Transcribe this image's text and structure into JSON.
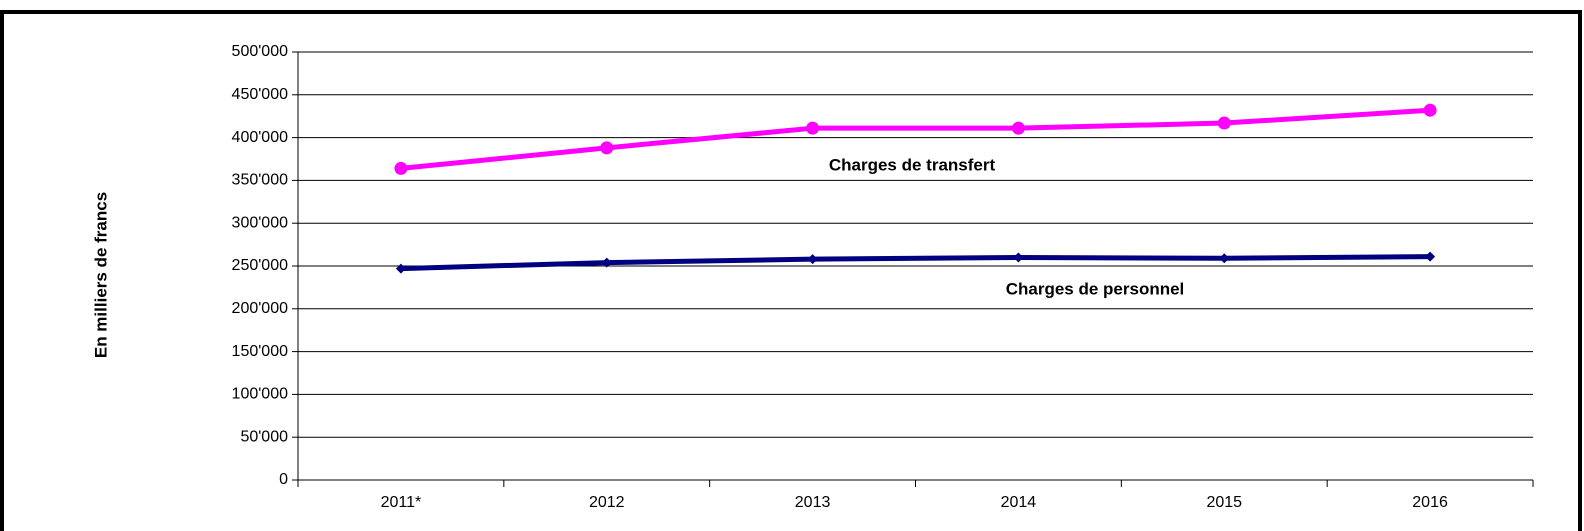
{
  "chart_data": {
    "type": "line",
    "y_label": "En milliers de francs",
    "categories": [
      "2011*",
      "2012",
      "2013",
      "2014",
      "2015",
      "2016"
    ],
    "series": [
      {
        "name": "Charges de transfert",
        "color": "#ff00ff",
        "marker": "circle",
        "values": [
          364000,
          388000,
          411000,
          411000,
          417000,
          432000
        ]
      },
      {
        "name": "Charges de personnel",
        "color": "#000080",
        "marker": "diamond",
        "values": [
          247000,
          254000,
          258000,
          260000,
          259000,
          261000
        ]
      }
    ],
    "ylim": [
      0,
      500000
    ],
    "yticks": [
      0,
      {
        "value": 50000,
        "label": "50'000"
      },
      {
        "value": 100000,
        "label": "100'000"
      },
      {
        "value": 150000,
        "label": "150'000"
      },
      {
        "value": 200000,
        "label": "200'000"
      },
      {
        "value": 250000,
        "label": "250'000"
      },
      {
        "value": 300000,
        "label": "300'000"
      },
      {
        "value": 350000,
        "label": "350'000"
      },
      {
        "value": 400000,
        "label": "400'000"
      },
      {
        "value": 450000,
        "label": "450'000"
      },
      {
        "value": 500000,
        "label": "500'000"
      }
    ],
    "grid": true
  }
}
